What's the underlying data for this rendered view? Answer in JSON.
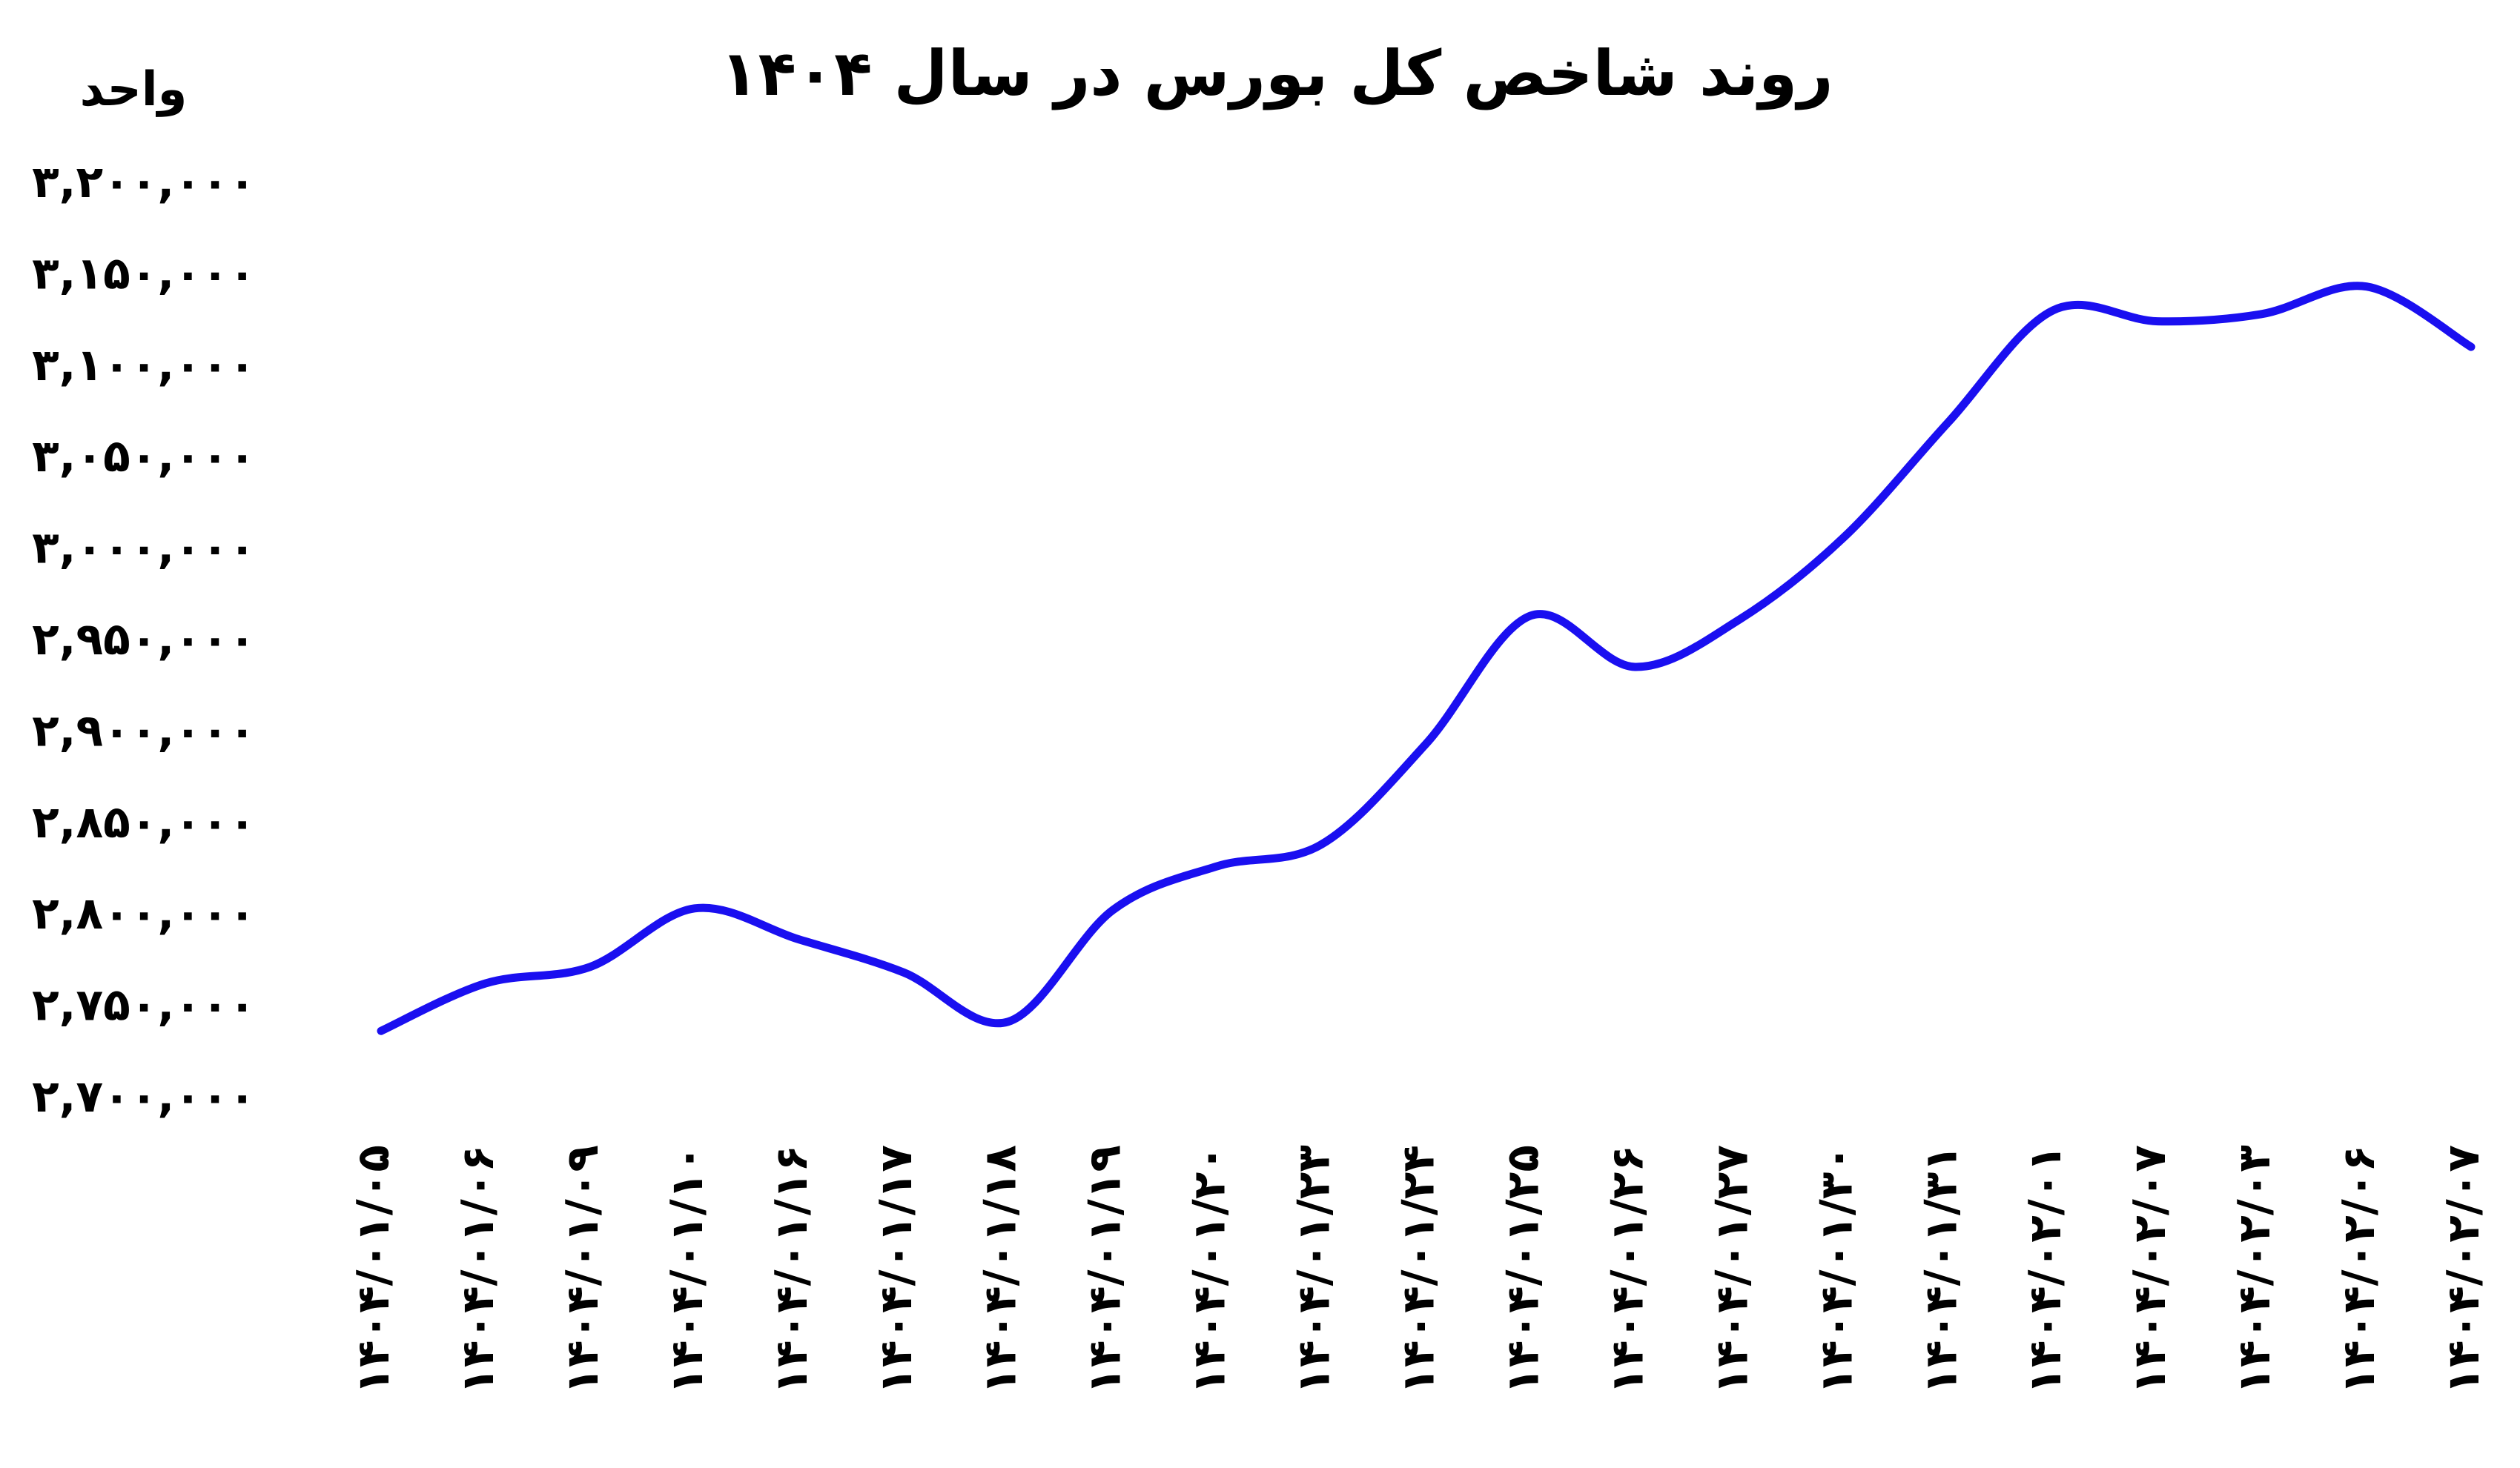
{
  "chart_data": {
    "type": "line",
    "title": "روند شاخص کل بورس در سال ۱۴۰۴",
    "ylabel": "واحد",
    "xlabel": "",
    "ylim": [
      2700000,
      3200000
    ],
    "yticks": [
      {
        "value": 3200000,
        "label": "۳,۲۰۰,۰۰۰"
      },
      {
        "value": 3150000,
        "label": "۳,۱۵۰,۰۰۰"
      },
      {
        "value": 3100000,
        "label": "۳,۱۰۰,۰۰۰"
      },
      {
        "value": 3050000,
        "label": "۳,۰۵۰,۰۰۰"
      },
      {
        "value": 3000000,
        "label": "۳,۰۰۰,۰۰۰"
      },
      {
        "value": 2950000,
        "label": "۲,۹۵۰,۰۰۰"
      },
      {
        "value": 2900000,
        "label": "۲,۹۰۰,۰۰۰"
      },
      {
        "value": 2850000,
        "label": "۲,۸۵۰,۰۰۰"
      },
      {
        "value": 2800000,
        "label": "۲,۸۰۰,۰۰۰"
      },
      {
        "value": 2750000,
        "label": "۲,۷۵۰,۰۰۰"
      },
      {
        "value": 2700000,
        "label": "۲,۷۰۰,۰۰۰"
      }
    ],
    "categories": [
      "۱۴۰۴/۰۱/۰۵",
      "۱۴۰۴/۰۱/۰۶",
      "۱۴۰۴/۰۱/۰۹",
      "۱۴۰۴/۰۱/۱۰",
      "۱۴۰۴/۰۱/۱۶",
      "۱۴۰۴/۰۱/۱۷",
      "۱۴۰۴/۰۱/۱۸",
      "۱۴۰۴/۰۱/۱۹",
      "۱۴۰۴/۰۱/۲۰",
      "۱۴۰۴/۰۱/۲۳",
      "۱۴۰۴/۰۱/۲۴",
      "۱۴۰۴/۰۱/۲۵",
      "۱۴۰۴/۰۱/۲۶",
      "۱۴۰۴/۰۱/۲۷",
      "۱۴۰۴/۰۱/۳۰",
      "۱۴۰۴/۰۱/۳۱",
      "۱۴۰۴/۰۲/۰۱",
      "۱۴۰۴/۰۲/۰۷",
      "۱۴۰۴/۰۲/۰۳",
      "۱۴۰۴/۰۲/۰۶",
      "۱۴۰۴/۰۲/۰۷"
    ],
    "series": [
      {
        "values": [
          2736000,
          2762000,
          2771000,
          2803000,
          2786000,
          2768000,
          2741000,
          2802000,
          2826000,
          2838000,
          2893000,
          2963000,
          2935000,
          2961000,
          3006000,
          3069000,
          3130000,
          3124000,
          3128000,
          3143000,
          3110000
        ]
      }
    ],
    "line_color": "#1a0ff0",
    "grid": false,
    "legend": "none"
  }
}
